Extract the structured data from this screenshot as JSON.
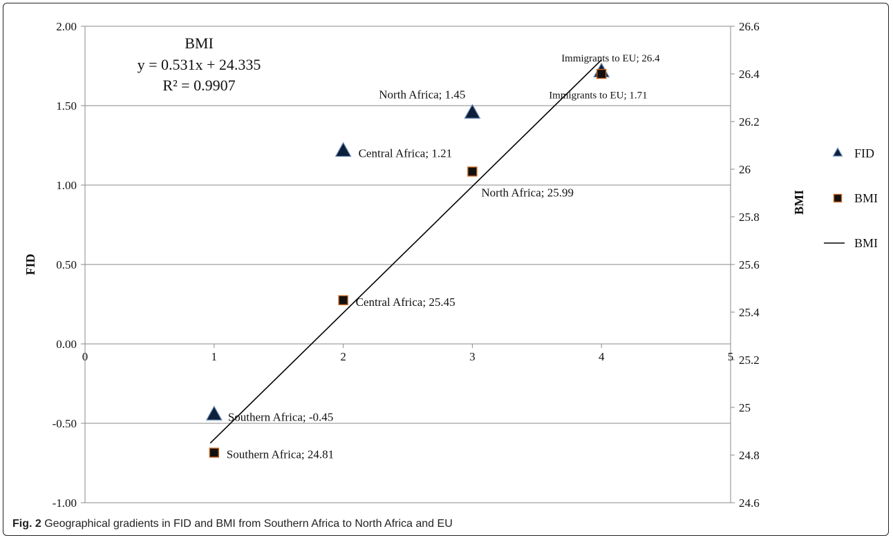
{
  "caption": {
    "label": "Fig. 2",
    "text": "Geographical gradients in FID and BMI from Southern Africa to North Africa and EU"
  },
  "chart_data": {
    "type": "scatter",
    "x_axis": {
      "range": [
        0,
        5
      ],
      "ticks": [
        "0",
        "1",
        "2",
        "3",
        "4",
        "5"
      ]
    },
    "y_axis_left": {
      "label": "FID",
      "range": [
        -1.0,
        2.0
      ],
      "ticks": [
        "-1.00",
        "-0.50",
        "0.00",
        "0.50",
        "1.00",
        "1.50",
        "2.00"
      ]
    },
    "y_axis_right": {
      "label": "BMI",
      "range": [
        24.6,
        26.6
      ],
      "ticks": [
        "24.6",
        "24.8",
        "25",
        "25.2",
        "25.4",
        "25.6",
        "25.8",
        "26",
        "26.2",
        "26.4",
        "26.6"
      ]
    },
    "grid": "horizontal",
    "series": [
      {
        "name": "FID",
        "axis": "left",
        "marker": "triangle",
        "color": "#0d1f3a",
        "points": [
          {
            "x": 1,
            "y": -0.45,
            "label": "Southern Africa; -0.45"
          },
          {
            "x": 2,
            "y": 1.21,
            "label": "Central Africa; 1.21"
          },
          {
            "x": 3,
            "y": 1.45,
            "label": "North Africa; 1.45"
          },
          {
            "x": 4,
            "y": 1.71,
            "label": "Immigrants to EU; 1.71"
          }
        ]
      },
      {
        "name": "BMI",
        "axis": "right",
        "marker": "square",
        "color": "#111111",
        "edge_color": "#c8641e",
        "points": [
          {
            "x": 1,
            "y": 24.81,
            "label": "Southern Africa; 24.81"
          },
          {
            "x": 2,
            "y": 25.45,
            "label": "Central Africa; 25.45"
          },
          {
            "x": 3,
            "y": 25.99,
            "label": "North Africa; 25.99"
          },
          {
            "x": 4,
            "y": 26.4,
            "label": "Immigrants to EU; 26.4"
          }
        ]
      }
    ],
    "trendline": {
      "name": "BMI",
      "axis": "right",
      "slope": 0.531,
      "intercept": 24.335,
      "x_range": [
        1,
        4
      ],
      "annotation": [
        "BMI",
        "y = 0.531x + 24.335",
        "R² = 0.9907"
      ]
    },
    "legend": {
      "placement": "right",
      "entries": [
        {
          "name": "FID",
          "marker": "triangle"
        },
        {
          "name": "BMI",
          "marker": "square"
        },
        {
          "name": "BMI",
          "marker": "line"
        }
      ]
    }
  }
}
